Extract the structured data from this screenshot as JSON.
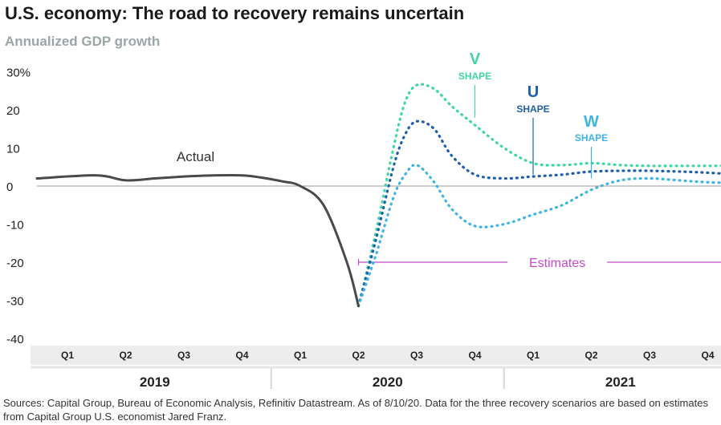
{
  "title": "U.S. economy: The road to recovery remains uncertain",
  "subtitle": "Annualized GDP growth",
  "sources": "Sources: Capital Group, Bureau of Economic Analysis, Refinitiv Datastream. As of 8/10/20. Data for the three recovery scenarios are based on estimates from Capital Group U.S. economist Jared Franz.",
  "chart_data": {
    "type": "line",
    "y_ticks": [
      "30%",
      "20",
      "10",
      "0",
      "-10",
      "-20",
      "-30",
      "-40"
    ],
    "ylim": [
      -40,
      30
    ],
    "categories": [
      "Q1",
      "Q2",
      "Q3",
      "Q4",
      "Q1",
      "Q2",
      "Q3",
      "Q4",
      "Q1",
      "Q2",
      "Q3",
      "Q4"
    ],
    "years": [
      "2019",
      "2020",
      "2021"
    ],
    "grid": false,
    "annotations": {
      "actual": "Actual",
      "estimates": "Estimates",
      "v_letter": "V",
      "v_shape": "SHAPE",
      "u_letter": "U",
      "u_shape": "SHAPE",
      "w_letter": "W",
      "w_shape": "SHAPE"
    },
    "colors": {
      "actual": "#4a4a4a",
      "v": "#3fd6a0",
      "u": "#1f5fa8",
      "w": "#3fb4e0",
      "estimates": "#c44cc4",
      "axis_band": "#ededed"
    },
    "series": [
      {
        "name": "Actual",
        "style": "solid",
        "x": [
          0,
          0.5,
          1.0,
          1.5,
          2.0,
          2.5,
          3.0,
          3.3,
          3.7,
          4.0,
          4.4,
          4.8,
          5.0
        ],
        "values": [
          2.0,
          2.8,
          1.5,
          2.0,
          2.5,
          2.8,
          2.8,
          2.3,
          1.2,
          0.0,
          -5.0,
          -20.0,
          -31.5
        ]
      },
      {
        "name": "V SHAPE",
        "style": "dotted",
        "x": [
          5.0,
          5.3,
          5.6,
          5.8,
          6.0,
          6.3,
          6.6,
          7.0,
          7.5,
          8.0,
          8.5,
          9.0,
          9.5,
          10.0,
          10.5,
          11.0,
          11.5
        ],
        "values": [
          -31.5,
          -12.0,
          10.0,
          22.0,
          26.5,
          25.5,
          21.0,
          16.0,
          10.0,
          6.0,
          5.5,
          6.0,
          5.5,
          5.3,
          5.3,
          5.3,
          5.3
        ]
      },
      {
        "name": "U SHAPE",
        "style": "dotted",
        "x": [
          5.0,
          5.3,
          5.6,
          5.8,
          6.0,
          6.3,
          6.6,
          7.0,
          7.5,
          8.0,
          8.5,
          9.0,
          9.5,
          10.0,
          10.5,
          11.0,
          11.5
        ],
        "values": [
          -31.5,
          -14.0,
          5.0,
          13.5,
          17.0,
          15.0,
          8.0,
          3.0,
          2.0,
          2.5,
          3.0,
          3.8,
          4.0,
          4.0,
          3.8,
          3.5,
          3.0
        ]
      },
      {
        "name": "W SHAPE",
        "style": "dotted",
        "x": [
          5.0,
          5.3,
          5.6,
          5.8,
          6.0,
          6.3,
          6.6,
          7.0,
          7.5,
          8.0,
          8.5,
          9.0,
          9.5,
          10.0,
          10.5,
          11.0,
          11.5
        ],
        "values": [
          -31.5,
          -18.0,
          -3.0,
          3.0,
          5.5,
          1.0,
          -6.0,
          -10.5,
          -10.0,
          -7.5,
          -5.0,
          -1.0,
          1.5,
          2.0,
          1.5,
          1.0,
          0.8
        ]
      }
    ]
  }
}
